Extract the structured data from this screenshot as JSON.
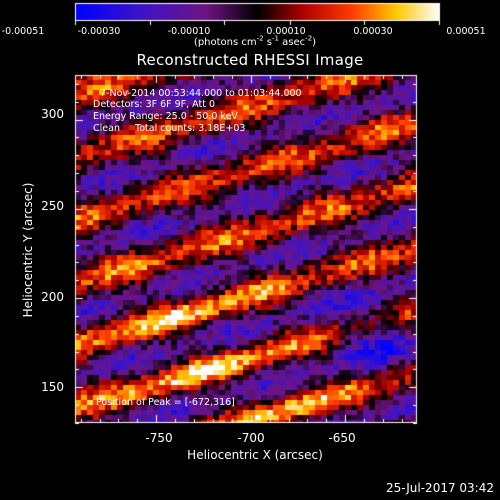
{
  "title": "Reconstructed RHESSI Image",
  "colorbar": {
    "tick_labels": [
      "-0.00051",
      "-0.00030",
      "-0.00010",
      "0.00010",
      "0.00030",
      "0.00051"
    ],
    "units_prefix": "(photons cm",
    "units_exp1": "-2",
    "units_mid": " s",
    "units_exp2": "-1",
    "units_mid2": " asec",
    "units_exp3": "-2",
    "units_suffix": ")",
    "min": -0.00051,
    "max": 0.00051
  },
  "info": {
    "line1": "7-Nov-2014 00:53:44.000 to 01:03:44.000",
    "line2": "Detectors: 3F 6F 9F, Att 0",
    "line3": "Energy Range: 25.0 - 50.0 keV",
    "line4": "Clean     Total counts: 3.18E+03"
  },
  "peak_label": "Position of Peak = [-672,316]",
  "axes": {
    "xlabel": "Heliocentric X (arcsec)",
    "ylabel": "Heliocentric Y (arcsec)",
    "x_ticks": [
      "-750",
      "-700",
      "-650"
    ],
    "x_tick_values": [
      -750,
      -700,
      -650
    ],
    "y_ticks": [
      "150",
      "200",
      "250",
      "300"
    ],
    "y_tick_values": [
      150,
      200,
      250,
      300
    ],
    "xlim": [
      -793,
      -612
    ],
    "ylim": [
      130,
      325
    ]
  },
  "footer_timestamp": "25-Jul-2017 03:42",
  "colors": {
    "background": "#000000",
    "text": "#ffffff"
  }
}
